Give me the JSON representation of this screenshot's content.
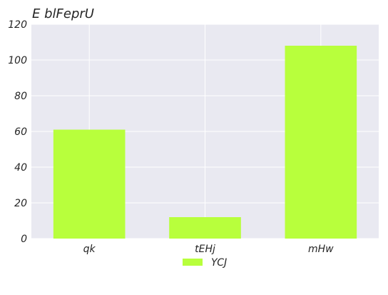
{
  "chart_data": {
    "type": "bar",
    "title": "E blFeprU",
    "xlabel": "",
    "ylabel": "",
    "categories": [
      "qk",
      "tEHj",
      "mHw"
    ],
    "series": [
      {
        "name": "YCJ",
        "values": [
          61,
          12,
          108
        ],
        "color": "#b8ff3c"
      }
    ],
    "ylim": [
      0,
      120
    ],
    "yticks": [
      0,
      20,
      40,
      60,
      80,
      100,
      120
    ],
    "grid": true,
    "legend": "bottom-center",
    "plot_background": "#e9e9f1",
    "grid_color": "#ffffff"
  }
}
